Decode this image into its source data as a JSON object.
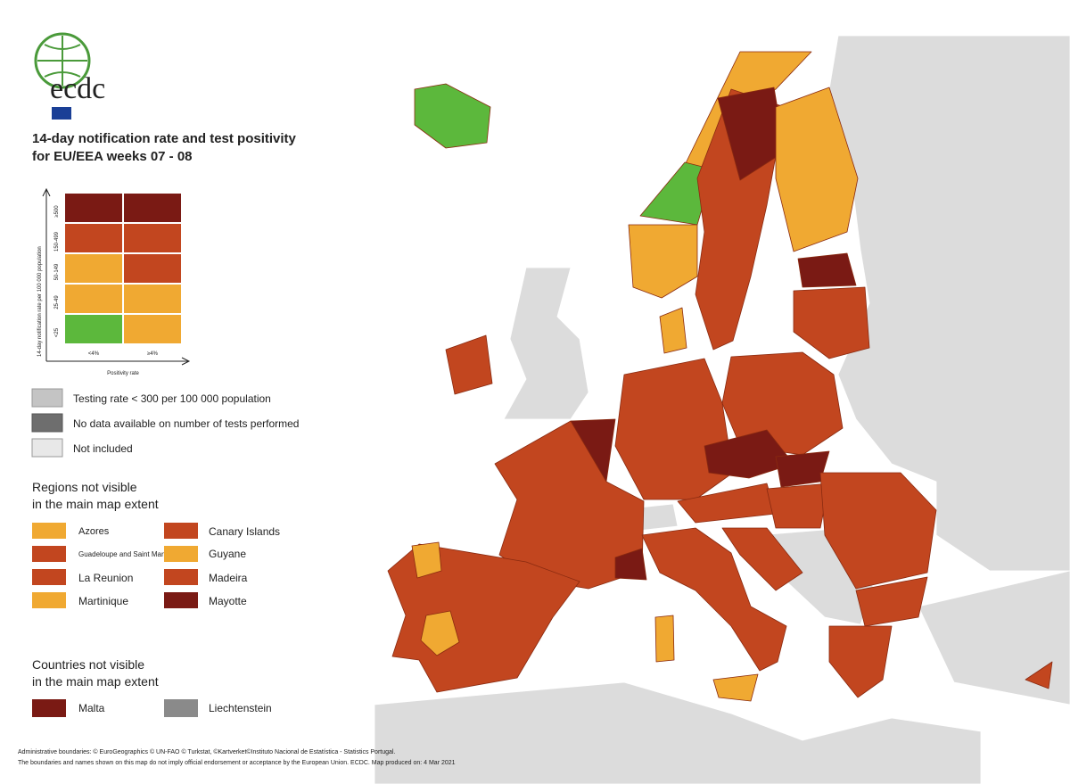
{
  "logo": {
    "text": "ecdc"
  },
  "title": {
    "line1": "14-day notification rate and test positivity",
    "line2": "for EU/EEA weeks 07 - 08"
  },
  "matrix": {
    "y_label": "14-day notification rate per 100 000 population",
    "y_ticks": [
      "<25",
      "25-49",
      "50-149",
      "150-499",
      "≥500"
    ],
    "x_ticks": [
      "<4%",
      "≥4%"
    ],
    "x_label": "Positivity rate"
  },
  "legend": {
    "items": [
      "Testing rate < 300 per 100 000 population",
      "No data available on number of tests performed",
      "Not included"
    ]
  },
  "regions": {
    "title": [
      "Regions not visible",
      "in the main map extent"
    ],
    "items": [
      "Azores",
      "Canary Islands",
      "Guadeloupe and Saint Martin",
      "Guyane",
      "La Reunion",
      "Madeira",
      "Martinique",
      "Mayotte"
    ]
  },
  "countries": {
    "title": [
      "Countries not visible",
      "in the main map extent"
    ],
    "items": [
      "Malta",
      "Liechtenstein"
    ]
  },
  "footer": {
    "line1": "Administrative boundaries: © EuroGeographics © UN-FAO © Turkstat, ©Kartverket©Instituto Nacional de Estatística - Statistics Portugal.",
    "line2": "The boundaries and names shown on this map do not imply official endorsement or acceptance by the European Union. ECDC. Map produced on: 4 Mar 2021"
  }
}
